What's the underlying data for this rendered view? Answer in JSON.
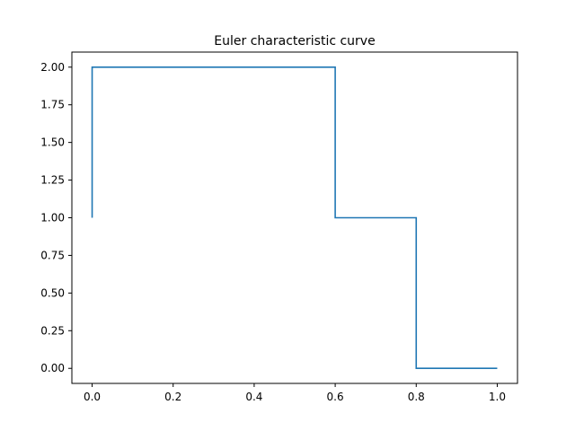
{
  "chart_data": {
    "type": "line",
    "step": "post",
    "title": "Euler characteristic curve",
    "xlabel": "",
    "ylabel": "",
    "xlim": [
      -0.05,
      1.05
    ],
    "ylim": [
      -0.1,
      2.1
    ],
    "xticks": [
      0.0,
      0.2,
      0.4,
      0.6,
      0.8,
      1.0
    ],
    "xtick_labels": [
      "0.0",
      "0.2",
      "0.4",
      "0.6",
      "0.8",
      "1.0"
    ],
    "yticks": [
      0.0,
      0.25,
      0.5,
      0.75,
      1.0,
      1.25,
      1.5,
      1.75,
      2.0
    ],
    "ytick_labels": [
      "0.00",
      "0.25",
      "0.50",
      "0.75",
      "1.00",
      "1.25",
      "1.50",
      "1.75",
      "2.00"
    ],
    "grid": false,
    "color": "#1f77b4",
    "series": [
      {
        "x": [
          0.0,
          0.0,
          0.6,
          0.6,
          0.8,
          0.8,
          1.0
        ],
        "y": [
          1.0,
          2.0,
          2.0,
          1.0,
          1.0,
          0.0,
          0.0
        ]
      }
    ]
  }
}
